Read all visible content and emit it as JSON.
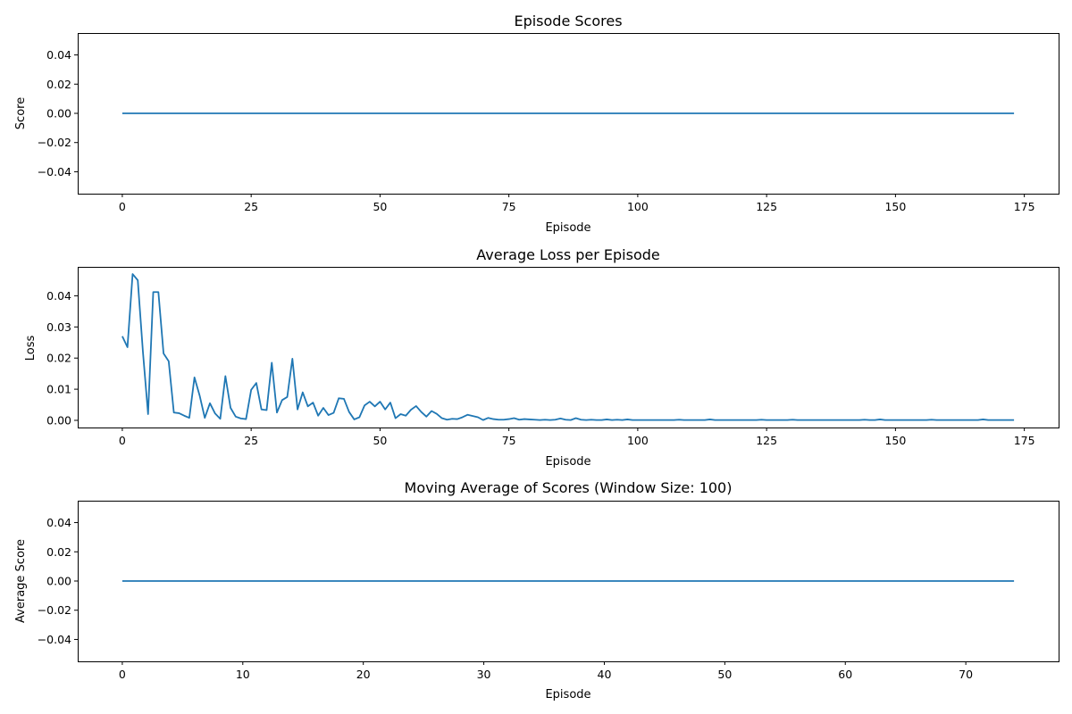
{
  "colors": {
    "series": "#1f77b4",
    "axes": "#000000",
    "background": "#ffffff"
  },
  "chart_data": [
    {
      "type": "line",
      "title": "Episode Scores",
      "xlabel": "Episode",
      "ylabel": "Score",
      "xlim": [
        -8.65,
        181.65
      ],
      "ylim": [
        -0.055,
        0.055
      ],
      "xticks": [
        0,
        25,
        50,
        75,
        100,
        125,
        150,
        175
      ],
      "yticks": [
        -0.04,
        -0.02,
        0.0,
        0.02,
        0.04
      ],
      "ytick_labels": [
        "−0.04",
        "−0.02",
        "0.00",
        "0.02",
        "0.04"
      ],
      "grid": false,
      "series": [
        {
          "x_start": 0,
          "values": [
            0,
            0,
            0,
            0,
            0,
            0,
            0,
            0,
            0,
            0,
            0,
            0,
            0,
            0,
            0,
            0,
            0,
            0,
            0,
            0,
            0,
            0,
            0,
            0,
            0,
            0,
            0,
            0,
            0,
            0,
            0,
            0,
            0,
            0,
            0,
            0,
            0,
            0,
            0,
            0,
            0,
            0,
            0,
            0,
            0,
            0,
            0,
            0,
            0,
            0,
            0,
            0,
            0,
            0,
            0,
            0,
            0,
            0,
            0,
            0,
            0,
            0,
            0,
            0,
            0,
            0,
            0,
            0,
            0,
            0,
            0,
            0,
            0,
            0,
            0,
            0,
            0,
            0,
            0,
            0,
            0,
            0,
            0,
            0,
            0,
            0,
            0,
            0,
            0,
            0,
            0,
            0,
            0,
            0,
            0,
            0,
            0,
            0,
            0,
            0,
            0,
            0,
            0,
            0,
            0,
            0,
            0,
            0,
            0,
            0,
            0,
            0,
            0,
            0,
            0,
            0,
            0,
            0,
            0,
            0,
            0,
            0,
            0,
            0,
            0,
            0,
            0,
            0,
            0,
            0,
            0,
            0,
            0,
            0,
            0,
            0,
            0,
            0,
            0,
            0,
            0,
            0,
            0,
            0,
            0,
            0,
            0,
            0,
            0,
            0,
            0,
            0,
            0,
            0,
            0,
            0,
            0,
            0,
            0,
            0,
            0,
            0,
            0,
            0,
            0,
            0,
            0,
            0,
            0,
            0,
            0,
            0,
            0,
            0
          ]
        }
      ]
    },
    {
      "type": "line",
      "title": "Average Loss per Episode",
      "xlabel": "Episode",
      "ylabel": "Loss",
      "xlim": [
        -8.65,
        181.65
      ],
      "ylim": [
        -0.0023,
        0.0493
      ],
      "xticks": [
        0,
        25,
        50,
        75,
        100,
        125,
        150,
        175
      ],
      "yticks": [
        0.0,
        0.01,
        0.02,
        0.03,
        0.04
      ],
      "ytick_labels": [
        "0.00",
        "0.01",
        "0.02",
        "0.03",
        "0.04"
      ],
      "grid": false,
      "series": [
        {
          "x_start": 0,
          "values": [
            0.027,
            0.0235,
            0.047,
            0.045,
            0.022,
            0.002,
            0.0412,
            0.0412,
            0.0215,
            0.019,
            0.0025,
            0.0023,
            0.0015,
            0.0008,
            0.0138,
            0.008,
            0.0008,
            0.0055,
            0.0022,
            0.0005,
            0.0142,
            0.004,
            0.0012,
            0.0006,
            0.0004,
            0.0098,
            0.012,
            0.0035,
            0.0033,
            0.0185,
            0.0025,
            0.0065,
            0.0075,
            0.0198,
            0.0035,
            0.009,
            0.0045,
            0.0057,
            0.0015,
            0.004,
            0.0017,
            0.0024,
            0.0071,
            0.0069,
            0.0027,
            0.0003,
            0.001,
            0.0048,
            0.006,
            0.0045,
            0.006,
            0.0035,
            0.0057,
            0.0007,
            0.002,
            0.0015,
            0.0034,
            0.0046,
            0.0027,
            0.0012,
            0.003,
            0.0021,
            0.0007,
            0.0002,
            0.0005,
            0.0004,
            0.001,
            0.0018,
            0.0014,
            0.001,
            0.0001,
            0.0008,
            0.0004,
            0.0002,
            0.0002,
            0.0004,
            0.0007,
            0.0002,
            0.0004,
            0.0003,
            0.0002,
            0.0001,
            0.0002,
            0.0001,
            0.0002,
            0.0006,
            0.0002,
            0.0001,
            0.0007,
            0.0002,
            0.0001,
            0.0002,
            0.0001,
            0.0001,
            0.0003,
            0.0001,
            0.0002,
            0.0001,
            0.0003,
            0.0001,
            0.0001,
            0.0001,
            0.0001,
            0.0001,
            0.0001,
            0.0001,
            0.0001,
            0.0001,
            0.0002,
            0.0001,
            0.0001,
            0.0001,
            0.0001,
            0.0001,
            0.0003,
            0.0001,
            0.0001,
            0.0001,
            0.0001,
            0.0001,
            0.0001,
            0.0001,
            0.0001,
            0.0001,
            0.0002,
            0.0001,
            0.0001,
            0.0001,
            0.0001,
            0.0001,
            0.0002,
            0.0001,
            0.0001,
            0.0001,
            0.0001,
            0.0001,
            0.0001,
            0.0001,
            0.0001,
            0.0001,
            0.0001,
            0.0001,
            0.0001,
            0.0001,
            0.0002,
            0.0001,
            0.0001,
            0.0003,
            0.0001,
            0.0001,
            0.0001,
            0.0001,
            0.0001,
            0.0001,
            0.0001,
            0.0001,
            0.0001,
            0.0002,
            0.0001,
            0.0001,
            0.0001,
            0.0001,
            0.0001,
            0.0001,
            0.0001,
            0.0001,
            0.0001,
            0.0003,
            0.0001,
            0.0001,
            0.0001,
            0.0001,
            0.0001,
            0.0001
          ]
        }
      ]
    },
    {
      "type": "line",
      "title": "Moving Average of Scores (Window Size: 100)",
      "xlabel": "Episode",
      "ylabel": "Average Score",
      "xlim": [
        -3.7,
        77.7
      ],
      "ylim": [
        -0.055,
        0.055
      ],
      "xticks": [
        0,
        10,
        20,
        30,
        40,
        50,
        60,
        70
      ],
      "yticks": [
        -0.04,
        -0.02,
        0.0,
        0.02,
        0.04
      ],
      "ytick_labels": [
        "−0.04",
        "−0.02",
        "0.00",
        "0.02",
        "0.04"
      ],
      "grid": false,
      "series": [
        {
          "x_start": 0,
          "values": [
            0,
            0,
            0,
            0,
            0,
            0,
            0,
            0,
            0,
            0,
            0,
            0,
            0,
            0,
            0,
            0,
            0,
            0,
            0,
            0,
            0,
            0,
            0,
            0,
            0,
            0,
            0,
            0,
            0,
            0,
            0,
            0,
            0,
            0,
            0,
            0,
            0,
            0,
            0,
            0,
            0,
            0,
            0,
            0,
            0,
            0,
            0,
            0,
            0,
            0,
            0,
            0,
            0,
            0,
            0,
            0,
            0,
            0,
            0,
            0,
            0,
            0,
            0,
            0,
            0,
            0,
            0,
            0,
            0,
            0,
            0,
            0,
            0,
            0,
            0
          ]
        }
      ]
    }
  ]
}
